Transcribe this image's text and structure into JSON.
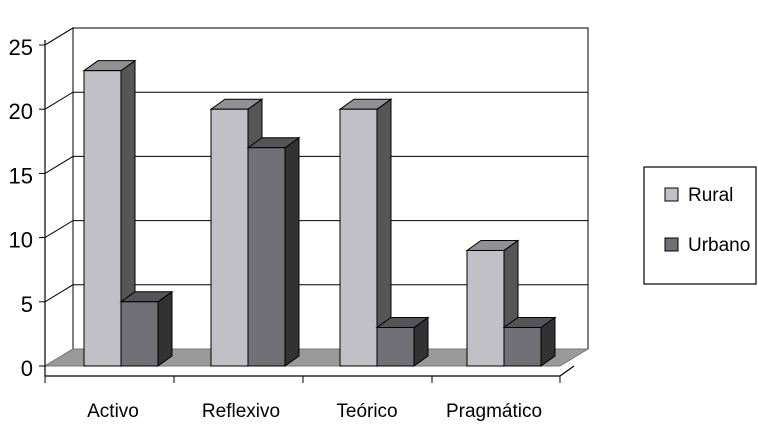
{
  "chart_data": {
    "type": "bar",
    "title": "",
    "xlabel": "",
    "ylabel": "",
    "categories": [
      "Activo",
      "Reflexivo",
      "Teórico",
      "Pragmático"
    ],
    "series": [
      {
        "name": "Rural",
        "values": [
          23,
          20,
          20,
          9
        ],
        "color": "#c0c0c6"
      },
      {
        "name": "Urbano",
        "values": [
          5,
          17,
          3,
          3
        ],
        "color": "#707076"
      }
    ],
    "ylim": [
      0,
      25
    ],
    "yticks": [
      "0",
      "5",
      "10",
      "15",
      "20",
      "25"
    ],
    "grid": true,
    "legend": "right",
    "style": "3d"
  }
}
